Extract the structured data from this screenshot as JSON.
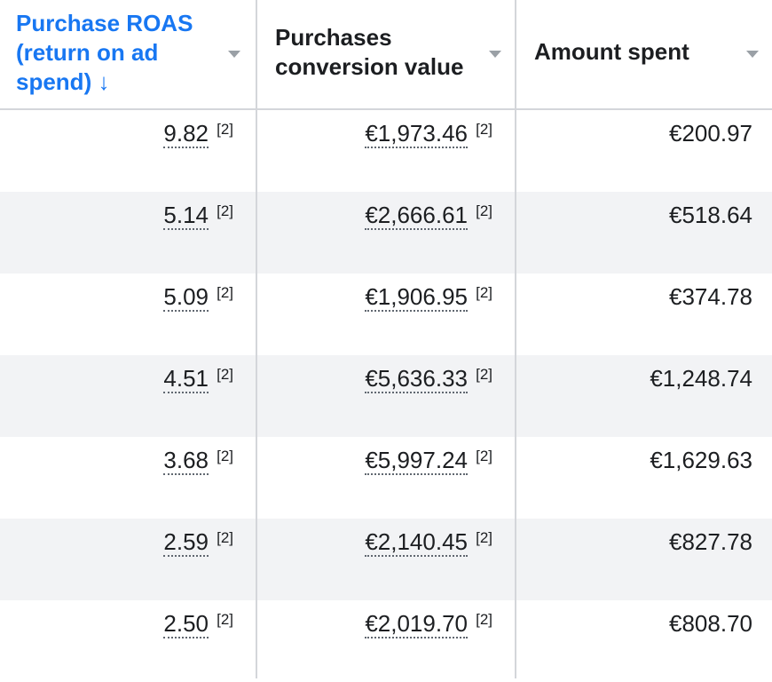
{
  "columns": [
    {
      "label": "Purchase ROAS (return on ad spend) ↓"
    },
    {
      "label": "Purchases conversion value"
    },
    {
      "label": "Amount spent"
    }
  ],
  "footnote_marker": "[2]",
  "rows": [
    {
      "roas": "9.82",
      "conv_value": "€1,973.46",
      "spent": "€200.97"
    },
    {
      "roas": "5.14",
      "conv_value": "€2,666.61",
      "spent": "€518.64"
    },
    {
      "roas": "5.09",
      "conv_value": "€1,906.95",
      "spent": "€374.78"
    },
    {
      "roas": "4.51",
      "conv_value": "€5,636.33",
      "spent": "€1,248.74"
    },
    {
      "roas": "3.68",
      "conv_value": "€5,997.24",
      "spent": "€1,629.63"
    },
    {
      "roas": "2.59",
      "conv_value": "€2,140.45",
      "spent": "€827.78"
    },
    {
      "roas": "2.50",
      "conv_value": "€2,019.70",
      "spent": "€808.70"
    }
  ],
  "colors": {
    "sorted_header": "#1877f2",
    "alt_row": "#f2f3f5",
    "divider": "#d4d6da"
  },
  "icons": {
    "sort": "arrow-down-icon",
    "menu": "caret-down-icon"
  }
}
